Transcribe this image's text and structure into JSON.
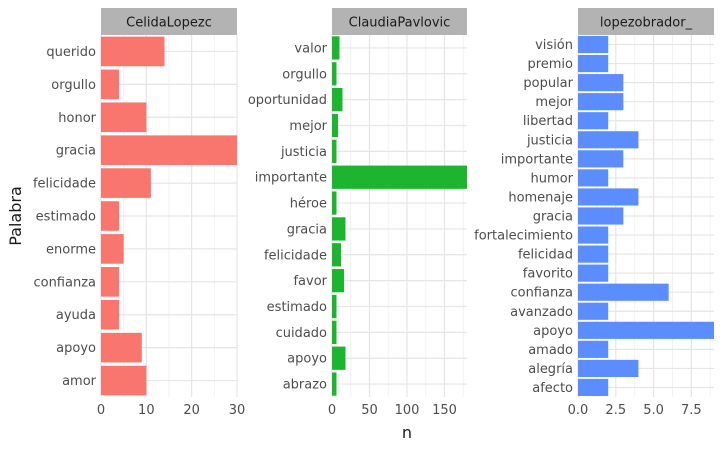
{
  "chart_data": {
    "type": "bar",
    "orientation": "horizontal",
    "faceted": true,
    "xlabel": "n",
    "ylabel": "Palabra",
    "grid": true,
    "legend": "none",
    "panels": [
      {
        "strip": "CelidaLopezc",
        "color": "#F8766D",
        "xlim": [
          0,
          30
        ],
        "xticks": [
          0,
          10,
          20,
          30
        ],
        "categories": [
          "amor",
          "apoyo",
          "ayuda",
          "confianza",
          "enorme",
          "estimado",
          "felicidade",
          "gracia",
          "honor",
          "orgullo",
          "querido"
        ],
        "values": [
          10,
          9,
          4,
          4,
          5,
          4,
          11,
          30,
          10,
          4,
          14
        ]
      },
      {
        "strip": "ClaudiaPavlovic",
        "color": "#1DB530",
        "xlim": [
          0,
          180
        ],
        "xticks": [
          0,
          50,
          100,
          150
        ],
        "categories": [
          "abrazo",
          "apoyo",
          "cuidado",
          "estimado",
          "favor",
          "felicidade",
          "gracia",
          "héroe",
          "importante",
          "justicia",
          "mejor",
          "oportunidad",
          "orgullo",
          "valor"
        ],
        "values": [
          6,
          18,
          6,
          6,
          16,
          12,
          18,
          6,
          180,
          6,
          8,
          14,
          6,
          10
        ]
      },
      {
        "strip": "lopezobrador_",
        "color": "#5B8DFF",
        "xlim": [
          0,
          9
        ],
        "xticks": [
          0,
          2.5,
          5,
          7.5
        ],
        "xtick_labels": [
          "0.0",
          "2.5",
          "5.0",
          "7.5"
        ],
        "categories": [
          "afecto",
          "alegría",
          "amado",
          "apoyo",
          "avanzado",
          "confianza",
          "favorito",
          "felicidad",
          "fortalecimiento",
          "gracia",
          "homenaje",
          "humor",
          "importante",
          "justicia",
          "libertad",
          "mejor",
          "popular",
          "premio",
          "visión"
        ],
        "values": [
          2,
          4,
          2,
          9,
          2,
          6,
          2,
          2,
          2,
          3,
          4,
          2,
          3,
          4,
          2,
          3,
          3,
          2,
          2
        ]
      }
    ]
  }
}
